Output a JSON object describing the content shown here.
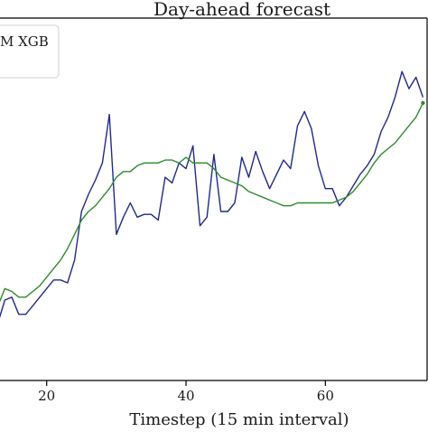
{
  "chart_data": {
    "type": "line",
    "title": "Day-ahead forecast",
    "xlabel": "Timestep (15 min interval)",
    "ylabel": "",
    "xlim": [
      13.3,
      74.6
    ],
    "ylim": [
      0.0,
      1.0
    ],
    "x_ticks": [
      20,
      40,
      60
    ],
    "x_tick_labels": [
      "20",
      "40",
      "60"
    ],
    "grid": false,
    "legend": {
      "placement": "top-left",
      "visible_text": "M XGB"
    },
    "series": [
      {
        "color": "#1f2a8a",
        "x": [
          13,
          14,
          15,
          16,
          17,
          18,
          19,
          20,
          21,
          22,
          23,
          24,
          25,
          26,
          27,
          28,
          29,
          30,
          31,
          32,
          33,
          34,
          35,
          36,
          37,
          38,
          39,
          40,
          41,
          42,
          43,
          44,
          45,
          46,
          47,
          48,
          49,
          50,
          51,
          52,
          53,
          54,
          55,
          56,
          57,
          58,
          59,
          60,
          61,
          62,
          63,
          64,
          65,
          66,
          67,
          68,
          69,
          70,
          71,
          72,
          73,
          74
        ],
        "y": [
          0.11,
          0.19,
          0.2,
          0.14,
          0.14,
          0.17,
          0.2,
          0.23,
          0.26,
          0.26,
          0.25,
          0.33,
          0.5,
          0.56,
          0.61,
          0.67,
          0.84,
          0.42,
          0.48,
          0.53,
          0.48,
          0.49,
          0.49,
          0.47,
          0.62,
          0.6,
          0.67,
          0.65,
          0.73,
          0.45,
          0.48,
          0.7,
          0.5,
          0.5,
          0.53,
          0.69,
          0.62,
          0.71,
          0.64,
          0.58,
          0.63,
          0.68,
          0.65,
          0.8,
          0.85,
          0.79,
          0.66,
          0.58,
          0.58,
          0.52,
          0.55,
          0.59,
          0.63,
          0.66,
          0.7,
          0.78,
          0.83,
          0.9,
          0.99,
          0.93,
          0.97,
          0.9
        ]
      },
      {
        "color": "#2e8b2e",
        "x": [
          13,
          14,
          15,
          16,
          17,
          18,
          19,
          20,
          21,
          22,
          23,
          24,
          25,
          26,
          27,
          28,
          29,
          30,
          31,
          32,
          33,
          34,
          35,
          36,
          37,
          38,
          39,
          40,
          41,
          42,
          43,
          44,
          45,
          46,
          47,
          48,
          49,
          50,
          51,
          52,
          53,
          54,
          55,
          56,
          57,
          58,
          59,
          60,
          61,
          62,
          63,
          64,
          65,
          66,
          67,
          68,
          69,
          70,
          71,
          72,
          73,
          74
        ],
        "y": [
          0.17,
          0.23,
          0.22,
          0.2,
          0.2,
          0.22,
          0.24,
          0.27,
          0.3,
          0.33,
          0.37,
          0.42,
          0.47,
          0.5,
          0.52,
          0.55,
          0.58,
          0.62,
          0.64,
          0.64,
          0.66,
          0.67,
          0.67,
          0.67,
          0.68,
          0.68,
          0.67,
          0.69,
          0.67,
          0.67,
          0.67,
          0.65,
          0.62,
          0.61,
          0.6,
          0.59,
          0.57,
          0.56,
          0.55,
          0.54,
          0.53,
          0.52,
          0.52,
          0.53,
          0.53,
          0.53,
          0.53,
          0.53,
          0.53,
          0.54,
          0.55,
          0.57,
          0.6,
          0.63,
          0.67,
          0.7,
          0.72,
          0.74,
          0.77,
          0.8,
          0.83,
          0.88
        ]
      }
    ]
  }
}
